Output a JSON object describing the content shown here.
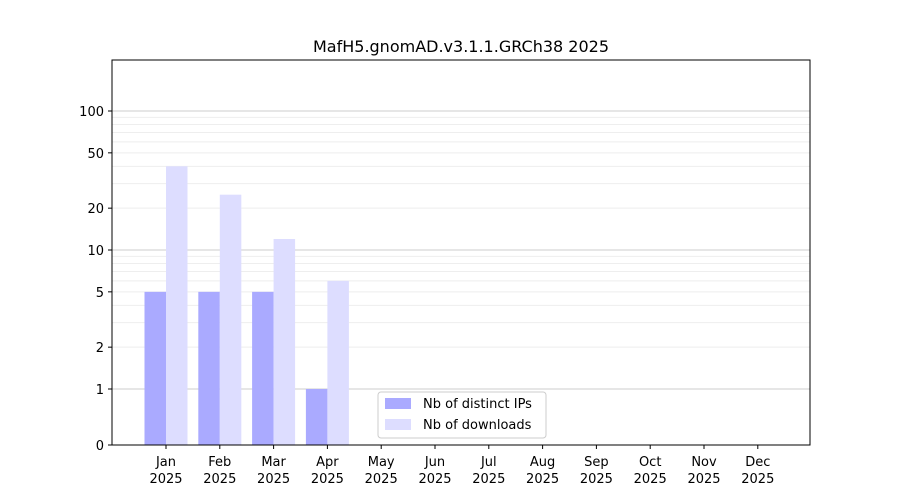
{
  "chart_data": {
    "type": "bar",
    "title": "MafH5.gnomAD.v3.1.1.GRCh38 2025",
    "xlabel": "",
    "ylabel": "",
    "y_scale": "symlog",
    "y_ticks": [
      0,
      1,
      2,
      5,
      10,
      20,
      50,
      100
    ],
    "y_tick_labels": [
      "0",
      "1",
      "2",
      "5",
      "10",
      "20",
      "50",
      "100"
    ],
    "categories": [
      [
        "Jan",
        "2025"
      ],
      [
        "Feb",
        "2025"
      ],
      [
        "Mar",
        "2025"
      ],
      [
        "Apr",
        "2025"
      ],
      [
        "May",
        "2025"
      ],
      [
        "Jun",
        "2025"
      ],
      [
        "Jul",
        "2025"
      ],
      [
        "Aug",
        "2025"
      ],
      [
        "Sep",
        "2025"
      ],
      [
        "Oct",
        "2025"
      ],
      [
        "Nov",
        "2025"
      ],
      [
        "Dec",
        "2025"
      ]
    ],
    "series": [
      {
        "name": "Nb of distinct IPs",
        "color": "#aaaaff",
        "values": [
          5,
          5,
          5,
          1,
          0,
          0,
          0,
          0,
          0,
          0,
          0,
          0
        ]
      },
      {
        "name": "Nb of downloads",
        "color": "#ddddff",
        "values": [
          40,
          25,
          12,
          6,
          0,
          0,
          0,
          0,
          0,
          0,
          0,
          0
        ]
      }
    ],
    "grid": true,
    "legend": "lower-center"
  }
}
